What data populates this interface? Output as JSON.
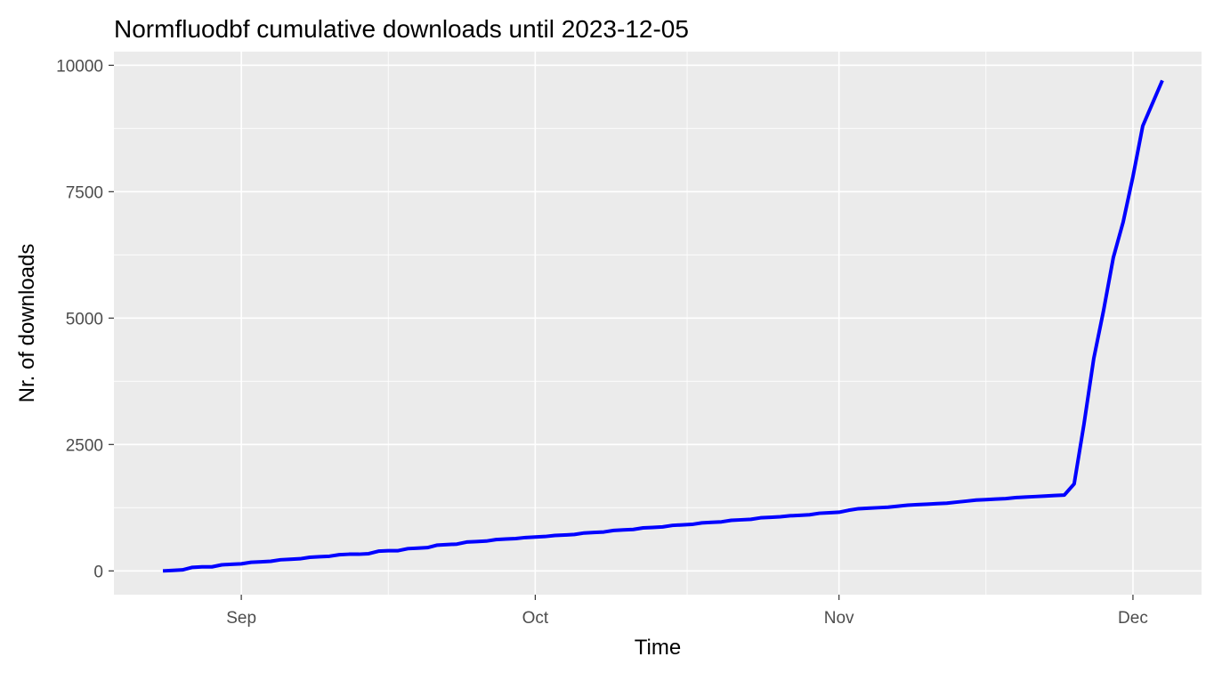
{
  "chart_data": {
    "type": "line",
    "title": "Normfluodbf cumulative downloads until 2023-12-05",
    "xlabel": "Time",
    "ylabel": "Nr. of downloads",
    "x_ticks": [
      {
        "date": "2023-09-01",
        "label": "Sep"
      },
      {
        "date": "2023-10-01",
        "label": "Oct"
      },
      {
        "date": "2023-11-01",
        "label": "Nov"
      },
      {
        "date": "2023-12-01",
        "label": "Dec"
      }
    ],
    "y_ticks": [
      0,
      2500,
      5000,
      7500,
      10000
    ],
    "y_tick_labels": [
      "0",
      "2500",
      "5000",
      "7500",
      "10000"
    ],
    "xlim": [
      "2023-08-19",
      "2023-12-08"
    ],
    "ylim": [
      -470,
      10270
    ],
    "grid": true,
    "colors": {
      "line": "#0000ff",
      "panel": "#ebebeb",
      "grid": "#ffffff"
    },
    "series": [
      {
        "points": [
          [
            "2023-08-24",
            0
          ],
          [
            "2023-08-25",
            10
          ],
          [
            "2023-08-26",
            20
          ],
          [
            "2023-08-27",
            70
          ],
          [
            "2023-08-28",
            80
          ],
          [
            "2023-08-29",
            80
          ],
          [
            "2023-08-30",
            120
          ],
          [
            "2023-08-31",
            130
          ],
          [
            "2023-09-01",
            140
          ],
          [
            "2023-09-02",
            170
          ],
          [
            "2023-09-03",
            180
          ],
          [
            "2023-09-04",
            190
          ],
          [
            "2023-09-05",
            220
          ],
          [
            "2023-09-06",
            230
          ],
          [
            "2023-09-07",
            240
          ],
          [
            "2023-09-08",
            270
          ],
          [
            "2023-09-09",
            280
          ],
          [
            "2023-09-10",
            290
          ],
          [
            "2023-09-11",
            320
          ],
          [
            "2023-09-12",
            330
          ],
          [
            "2023-09-13",
            330
          ],
          [
            "2023-09-14",
            340
          ],
          [
            "2023-09-15",
            390
          ],
          [
            "2023-09-16",
            400
          ],
          [
            "2023-09-17",
            400
          ],
          [
            "2023-09-18",
            440
          ],
          [
            "2023-09-19",
            450
          ],
          [
            "2023-09-20",
            460
          ],
          [
            "2023-09-21",
            510
          ],
          [
            "2023-09-22",
            520
          ],
          [
            "2023-09-23",
            530
          ],
          [
            "2023-09-24",
            570
          ],
          [
            "2023-09-25",
            580
          ],
          [
            "2023-09-26",
            590
          ],
          [
            "2023-09-27",
            620
          ],
          [
            "2023-09-28",
            630
          ],
          [
            "2023-09-29",
            640
          ],
          [
            "2023-09-30",
            660
          ],
          [
            "2023-10-01",
            670
          ],
          [
            "2023-10-02",
            680
          ],
          [
            "2023-10-03",
            700
          ],
          [
            "2023-10-04",
            710
          ],
          [
            "2023-10-05",
            720
          ],
          [
            "2023-10-06",
            750
          ],
          [
            "2023-10-07",
            760
          ],
          [
            "2023-10-08",
            770
          ],
          [
            "2023-10-09",
            800
          ],
          [
            "2023-10-10",
            810
          ],
          [
            "2023-10-11",
            820
          ],
          [
            "2023-10-12",
            850
          ],
          [
            "2023-10-13",
            860
          ],
          [
            "2023-10-14",
            870
          ],
          [
            "2023-10-15",
            900
          ],
          [
            "2023-10-16",
            910
          ],
          [
            "2023-10-17",
            920
          ],
          [
            "2023-10-18",
            950
          ],
          [
            "2023-10-19",
            960
          ],
          [
            "2023-10-20",
            970
          ],
          [
            "2023-10-21",
            1000
          ],
          [
            "2023-10-22",
            1010
          ],
          [
            "2023-10-23",
            1020
          ],
          [
            "2023-10-24",
            1050
          ],
          [
            "2023-10-25",
            1060
          ],
          [
            "2023-10-26",
            1070
          ],
          [
            "2023-10-27",
            1090
          ],
          [
            "2023-10-28",
            1100
          ],
          [
            "2023-10-29",
            1110
          ],
          [
            "2023-10-30",
            1140
          ],
          [
            "2023-10-31",
            1150
          ],
          [
            "2023-11-01",
            1160
          ],
          [
            "2023-11-02",
            1200
          ],
          [
            "2023-11-03",
            1230
          ],
          [
            "2023-11-04",
            1240
          ],
          [
            "2023-11-05",
            1250
          ],
          [
            "2023-11-06",
            1260
          ],
          [
            "2023-11-07",
            1280
          ],
          [
            "2023-11-08",
            1300
          ],
          [
            "2023-11-09",
            1310
          ],
          [
            "2023-11-10",
            1320
          ],
          [
            "2023-11-11",
            1330
          ],
          [
            "2023-11-12",
            1340
          ],
          [
            "2023-11-13",
            1360
          ],
          [
            "2023-11-14",
            1380
          ],
          [
            "2023-11-15",
            1400
          ],
          [
            "2023-11-16",
            1410
          ],
          [
            "2023-11-17",
            1420
          ],
          [
            "2023-11-18",
            1430
          ],
          [
            "2023-11-19",
            1450
          ],
          [
            "2023-11-20",
            1460
          ],
          [
            "2023-11-21",
            1470
          ],
          [
            "2023-11-22",
            1480
          ],
          [
            "2023-11-23",
            1490
          ],
          [
            "2023-11-24",
            1500
          ],
          [
            "2023-11-25",
            1720
          ],
          [
            "2023-11-26",
            2900
          ],
          [
            "2023-11-27",
            4200
          ],
          [
            "2023-11-28",
            5150
          ],
          [
            "2023-11-29",
            6200
          ],
          [
            "2023-11-30",
            6900
          ],
          [
            "2023-12-01",
            7800
          ],
          [
            "2023-12-02",
            8800
          ],
          [
            "2023-12-04",
            9700
          ]
        ]
      }
    ]
  }
}
